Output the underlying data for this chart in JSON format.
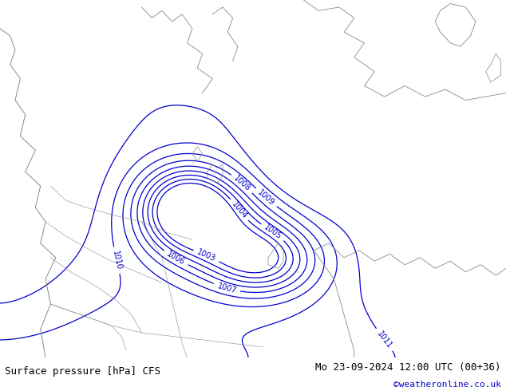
{
  "title_left": "Surface pressure [hPa] CFS",
  "title_right": "Mo 23-09-2024 12:00 UTC (00+36)",
  "copyright": "©weatheronline.co.uk",
  "bg_color": "#c8e6a0",
  "contour_color": "#0000cc",
  "label_fontsize": 7,
  "footer_fontsize": 9,
  "copyright_fontsize": 8,
  "copyright_color": "#0000cc",
  "coast_color": "#888888",
  "border_color": "#888888",
  "footer_bg": "#ffffff",
  "figsize": [
    6.34,
    4.9
  ],
  "dpi": 100
}
